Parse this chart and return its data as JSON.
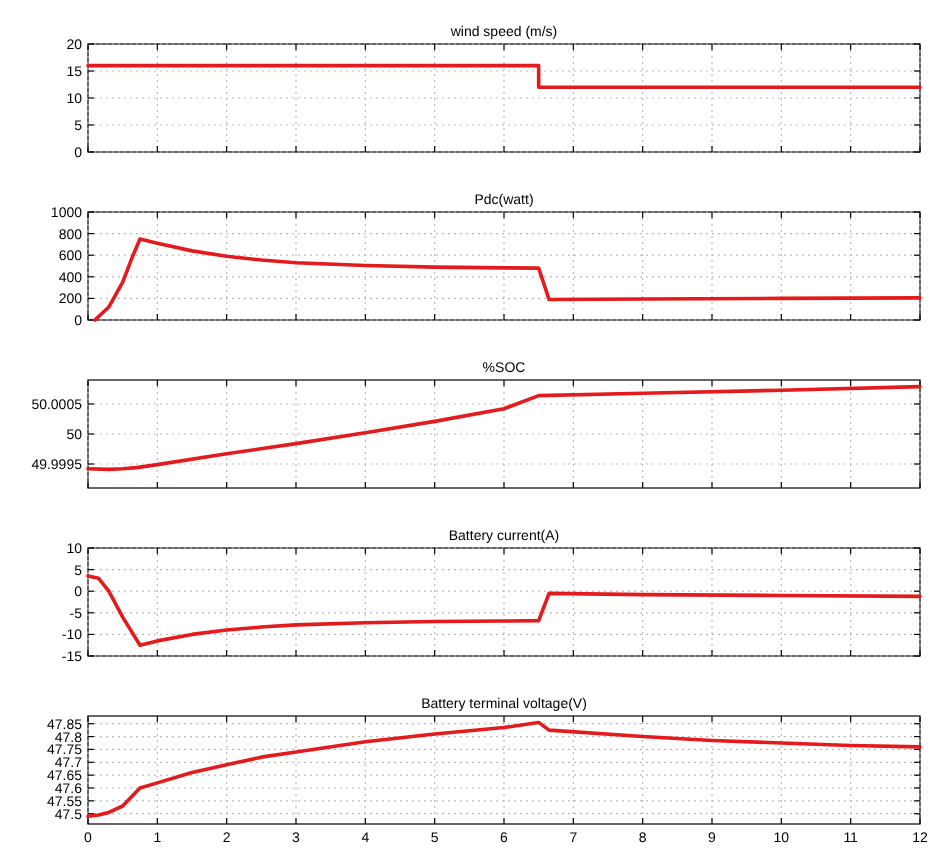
{
  "chart_data": [
    {
      "type": "line",
      "title": "wind speed (m/s)",
      "xlim": [
        0,
        12
      ],
      "xticks": [
        0,
        1,
        2,
        3,
        4,
        5,
        6,
        7,
        8,
        9,
        10,
        11,
        12
      ],
      "ylim": [
        0,
        20
      ],
      "yticks": [
        0,
        5,
        10,
        15,
        20
      ],
      "grid": true,
      "tick_labels": "y",
      "series": [
        {
          "color": "#e41a1c",
          "x": [
            0,
            6.5,
            6.5,
            12
          ],
          "values": [
            16,
            16,
            12,
            12
          ]
        }
      ]
    },
    {
      "type": "line",
      "title": "Pdc(watt)",
      "xlim": [
        0,
        12
      ],
      "xticks": [
        0,
        1,
        2,
        3,
        4,
        5,
        6,
        7,
        8,
        9,
        10,
        11,
        12
      ],
      "ylim": [
        0,
        1000
      ],
      "yticks": [
        0,
        200,
        400,
        600,
        800,
        1000
      ],
      "grid": true,
      "tick_labels": "y",
      "series": [
        {
          "color": "#e41a1c",
          "x": [
            0.1,
            0.3,
            0.5,
            0.65,
            0.75,
            1,
            1.5,
            2,
            2.5,
            3,
            4,
            5,
            6,
            6.5,
            6.65,
            8,
            10,
            12
          ],
          "values": [
            0,
            120,
            350,
            600,
            750,
            710,
            640,
            590,
            555,
            530,
            505,
            490,
            483,
            480,
            190,
            195,
            200,
            205
          ]
        }
      ]
    },
    {
      "type": "line",
      "title": "%SOC",
      "xlim": [
        0,
        12
      ],
      "xticks": [
        0,
        1,
        2,
        3,
        4,
        5,
        6,
        7,
        8,
        9,
        10,
        11,
        12
      ],
      "ylim": [
        49.9991,
        50.0009
      ],
      "yticks": [
        49.9995,
        50,
        50.0005
      ],
      "grid": true,
      "tick_labels": "y",
      "series": [
        {
          "color": "#e41a1c",
          "x": [
            0,
            0.3,
            0.5,
            0.7,
            1,
            2,
            3,
            4,
            5,
            6,
            6.5,
            8,
            10,
            12
          ],
          "values": [
            49.99942,
            49.99941,
            49.99942,
            49.99944,
            49.99949,
            49.99967,
            49.99984,
            50.00002,
            50.00021,
            50.00042,
            50.00064,
            50.00068,
            50.00073,
            50.00079
          ]
        }
      ]
    },
    {
      "type": "line",
      "title": "Battery current(A)",
      "xlim": [
        0,
        12
      ],
      "xticks": [
        0,
        1,
        2,
        3,
        4,
        5,
        6,
        7,
        8,
        9,
        10,
        11,
        12
      ],
      "ylim": [
        -15,
        10
      ],
      "yticks": [
        -15,
        -10,
        -5,
        0,
        5,
        10
      ],
      "grid": true,
      "tick_labels": "y",
      "series": [
        {
          "color": "#e41a1c",
          "x": [
            0,
            0.15,
            0.3,
            0.5,
            0.75,
            1,
            1.5,
            2,
            2.5,
            3,
            4,
            5,
            6,
            6.5,
            6.65,
            8,
            10,
            12
          ],
          "values": [
            3.5,
            3,
            0,
            -6,
            -12.5,
            -11.5,
            -10,
            -9,
            -8.3,
            -7.8,
            -7.3,
            -7,
            -6.9,
            -6.8,
            -0.5,
            -0.8,
            -1,
            -1.2
          ]
        }
      ]
    },
    {
      "type": "line",
      "title": "Battery terminal voltage(V)",
      "xlim": [
        0,
        12
      ],
      "xticks": [
        0,
        1,
        2,
        3,
        4,
        5,
        6,
        7,
        8,
        9,
        10,
        11,
        12
      ],
      "ylim": [
        47.46,
        47.88
      ],
      "yticks": [
        47.5,
        47.55,
        47.6,
        47.65,
        47.7,
        47.75,
        47.8,
        47.85
      ],
      "grid": true,
      "series": [
        {
          "color": "#e41a1c",
          "x": [
            0,
            0.15,
            0.3,
            0.5,
            0.75,
            1,
            1.5,
            2,
            2.5,
            3,
            4,
            5,
            6,
            6.5,
            6.65,
            8,
            9,
            10,
            11,
            12
          ],
          "values": [
            47.49,
            47.495,
            47.505,
            47.53,
            47.6,
            47.62,
            47.66,
            47.69,
            47.72,
            47.74,
            47.78,
            47.81,
            47.835,
            47.855,
            47.825,
            47.8,
            47.785,
            47.775,
            47.765,
            47.76
          ]
        }
      ]
    }
  ]
}
